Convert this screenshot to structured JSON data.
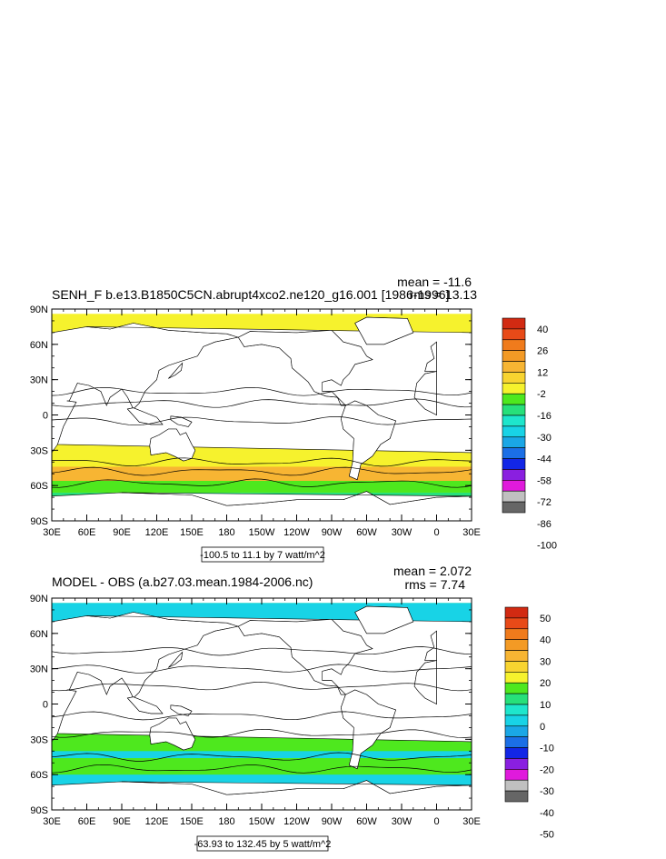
{
  "colors": {
    "ocean_background": "#ffffff",
    "land": "#ffffff",
    "palette": [
      "#666666",
      "#c0c0c0",
      "#e01adc",
      "#8a1fe0",
      "#1226e6",
      "#1b6fe6",
      "#1aa7e6",
      "#18d3e6",
      "#1ee6cc",
      "#27e07a",
      "#4ee81e",
      "#f6f22d",
      "#f8d430",
      "#f7b533",
      "#f39a25",
      "#f07b1c",
      "#e84a18",
      "#d22a12"
    ]
  },
  "panels": [
    {
      "title": "SENH_F b.e13.B1850C5CN.abrupt4xco2.ne120_g16.001 [1986-1996]",
      "mean_text": "mean = -11.6",
      "rms_text": "rms = 13.13",
      "range_text": "-100.5 to 11.1 by 7 watt/m^2",
      "lat_labels": [
        "90N",
        "60N",
        "30N",
        "0",
        "30S",
        "60S",
        "90S"
      ],
      "lon_labels": [
        "30E",
        "60E",
        "90E",
        "120E",
        "150E",
        "180",
        "150W",
        "120W",
        "90W",
        "60W",
        "30W",
        "0",
        "30E"
      ],
      "colorbar_labels": [
        "40",
        "26",
        "12",
        "-2",
        "-16",
        "-30",
        "-44",
        "-58",
        "-72",
        "-86",
        "-100"
      ],
      "colorbar_colors": [
        "#d22a12",
        "#e84a18",
        "#f07b1c",
        "#f39a25",
        "#f7b533",
        "#f8d430",
        "#f6f22d",
        "#4ee81e",
        "#27e07a",
        "#1ee6cc",
        "#18d3e6",
        "#1aa7e6",
        "#1b6fe6",
        "#1226e6",
        "#8a1fe0",
        "#e01adc",
        "#c0c0c0",
        "#666666"
      ],
      "dominant_fill": "#f6f22d",
      "bands": [
        {
          "lat": [
            86,
            90
          ],
          "color": "#f6f22d"
        },
        {
          "lat": [
            70,
            86
          ],
          "color": "#f6f22d"
        },
        {
          "lat": [
            10,
            22
          ],
          "color": "#f7b533"
        },
        {
          "lat": [
            -40,
            -44
          ],
          "color": "#f6f22d"
        },
        {
          "lat": [
            -44,
            -56
          ],
          "color": "#f7b533"
        },
        {
          "lat": [
            -56,
            -66
          ],
          "color": "#4ee81e"
        },
        {
          "lat": [
            -66,
            -69
          ],
          "color": "#27e07a"
        }
      ]
    },
    {
      "title": "MODEL - OBS (a.b27.03.mean.1984-2006.nc)",
      "mean_text": "mean = 2.072",
      "rms_text": "rms = 7.74",
      "range_text": "-63.93 to 132.45 by 5 watt/m^2",
      "lat_labels": [
        "90N",
        "60N",
        "30N",
        "0",
        "30S",
        "60S",
        "90S"
      ],
      "lon_labels": [
        "30E",
        "60E",
        "90E",
        "120E",
        "150E",
        "180",
        "150W",
        "120W",
        "90W",
        "60W",
        "30W",
        "0",
        "30E"
      ],
      "colorbar_labels": [
        "50",
        "40",
        "30",
        "20",
        "10",
        "0",
        "-10",
        "-20",
        "-30",
        "-40",
        "-50"
      ],
      "colorbar_colors": [
        "#d22a12",
        "#e84a18",
        "#f07b1c",
        "#f39a25",
        "#f7b533",
        "#f8d430",
        "#f6f22d",
        "#4ee81e",
        "#27e07a",
        "#1ee6cc",
        "#18d3e6",
        "#1aa7e6",
        "#1b6fe6",
        "#1226e6",
        "#8a1fe0",
        "#e01adc",
        "#c0c0c0",
        "#666666"
      ],
      "dominant_fill": "#4ee81e",
      "bands": [
        {
          "lat": [
            70,
            86
          ],
          "color": "#18d3e6"
        },
        {
          "lat": [
            -40,
            -46
          ],
          "color": "#18d3e6"
        },
        {
          "lat": [
            -46,
            -60
          ],
          "color": "#4ee81e"
        },
        {
          "lat": [
            -60,
            -72
          ],
          "color": "#18d3e6"
        }
      ]
    }
  ]
}
